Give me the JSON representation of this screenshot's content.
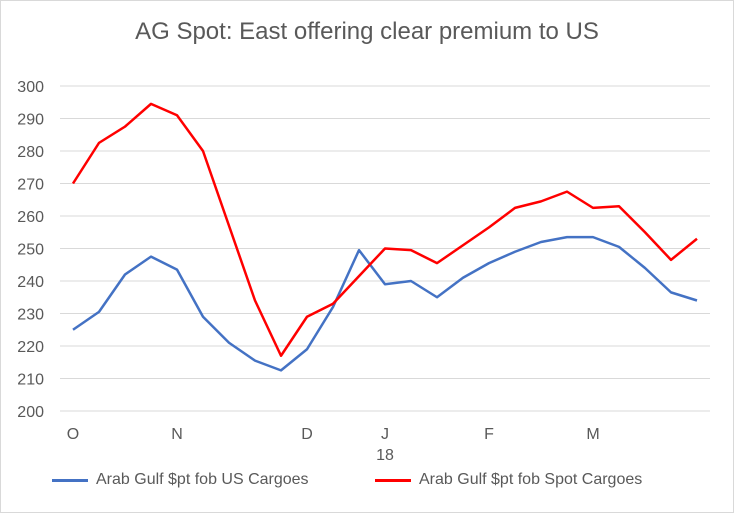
{
  "chart_data": {
    "type": "line",
    "title": "AG Spot: East offering clear premium to US",
    "xlabel": "",
    "ylabel": "",
    "ylim": [
      200,
      300
    ],
    "yticks": [
      200,
      210,
      220,
      230,
      240,
      250,
      260,
      270,
      280,
      290,
      300
    ],
    "grid": true,
    "legend_position": "bottom",
    "x_tick_labels": [
      {
        "index": 0,
        "label": "O",
        "sub": ""
      },
      {
        "index": 4,
        "label": "N",
        "sub": ""
      },
      {
        "index": 9,
        "label": "D",
        "sub": ""
      },
      {
        "index": 12,
        "label": "J",
        "sub": "18"
      },
      {
        "index": 16,
        "label": "F",
        "sub": ""
      },
      {
        "index": 20,
        "label": "M",
        "sub": ""
      }
    ],
    "series": [
      {
        "name": "Arab Gulf $pt fob US Cargoes",
        "color": "#4472c4",
        "values": [
          225,
          230.5,
          242,
          247.5,
          243.5,
          229,
          221,
          215.5,
          212.5,
          219,
          232,
          249.5,
          239,
          240,
          235,
          241,
          245.5,
          249,
          252,
          253.5,
          253.5,
          250.5,
          244,
          236.5,
          234
        ]
      },
      {
        "name": "Arab Gulf $pt fob Spot Cargoes",
        "color": "#ff0000",
        "values": [
          270,
          282.5,
          287.5,
          294.5,
          291,
          280,
          257,
          234,
          217,
          229,
          233,
          241.5,
          250,
          249.5,
          245.5,
          251,
          256.5,
          262.5,
          264.5,
          267.5,
          262.5,
          263,
          255,
          246.5,
          253
        ]
      }
    ]
  }
}
